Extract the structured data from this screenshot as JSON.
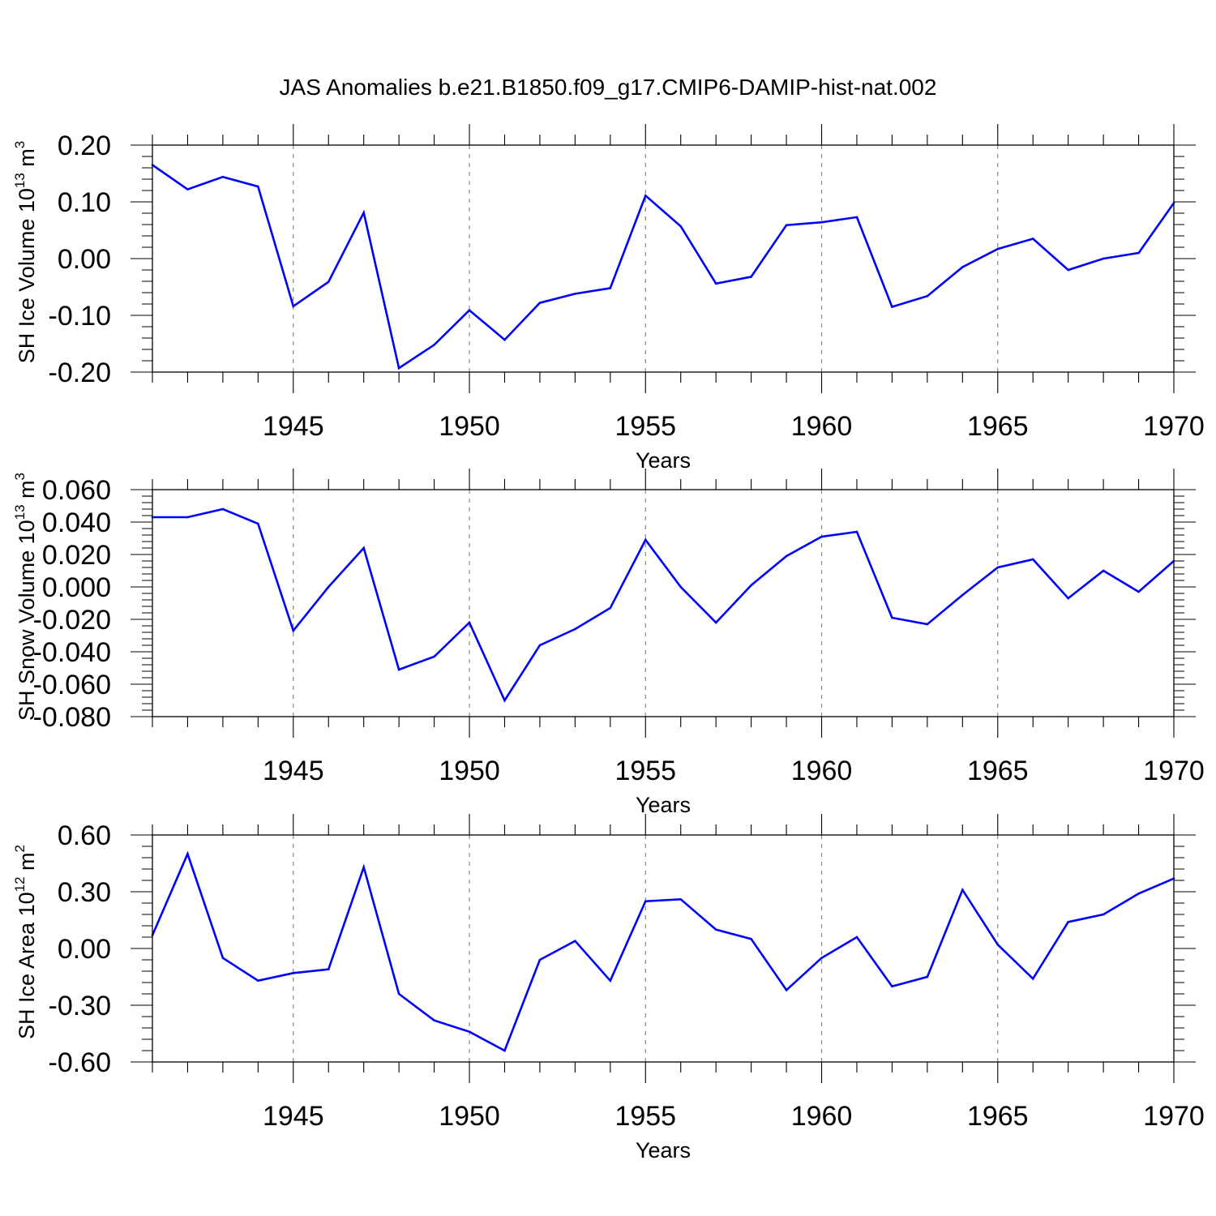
{
  "title": "JAS Anomalies b.e21.B1850.f09_g17.CMIP6-DAMIP-hist-nat.002",
  "colors": {
    "line": "#0000ff",
    "axis": "#000000",
    "grid": "#888888"
  },
  "chart_data": [
    {
      "type": "line",
      "ylabel_main": "SH Ice Volume 10",
      "ylabel_exp": "13",
      "ylabel_unit": " m",
      "ylabel_unit_exp": "3",
      "xlabel": "Years",
      "xlim": [
        1941,
        1970
      ],
      "ylim": [
        -0.2,
        0.2
      ],
      "yticks": [
        0.2,
        0.1,
        0.0,
        -0.1,
        -0.2
      ],
      "ytick_labels": [
        "0.20",
        "0.10",
        "0.00",
        "-0.10",
        "-0.20"
      ],
      "xticks": [
        1945,
        1950,
        1955,
        1960,
        1965,
        1970
      ],
      "xtick_labels": [
        "1945",
        "1950",
        "1955",
        "1960",
        "1965",
        "1970"
      ],
      "x": [
        1941,
        1942,
        1943,
        1944,
        1945,
        1946,
        1947,
        1948,
        1949,
        1950,
        1951,
        1952,
        1953,
        1954,
        1955,
        1956,
        1957,
        1958,
        1959,
        1960,
        1961,
        1962,
        1963,
        1964,
        1965,
        1966,
        1967,
        1968,
        1969,
        1970
      ],
      "values": [
        0.165,
        0.122,
        0.144,
        0.127,
        -0.084,
        -0.041,
        0.081,
        -0.193,
        -0.152,
        -0.091,
        -0.143,
        -0.078,
        -0.062,
        -0.052,
        0.111,
        0.057,
        -0.044,
        -0.032,
        0.059,
        0.064,
        0.073,
        -0.085,
        -0.066,
        -0.015,
        0.017,
        0.035,
        -0.02,
        0.0,
        0.01,
        0.098
      ]
    },
    {
      "type": "line",
      "ylabel_main": "SH Snow Volume 10",
      "ylabel_exp": "13",
      "ylabel_unit": " m",
      "ylabel_unit_exp": "3",
      "xlabel": "Years",
      "xlim": [
        1941,
        1970
      ],
      "ylim": [
        -0.08,
        0.06
      ],
      "yticks": [
        0.06,
        0.04,
        0.02,
        0.0,
        -0.02,
        -0.04,
        -0.06,
        -0.08
      ],
      "ytick_labels": [
        "0.060",
        "0.040",
        "0.020",
        "0.000",
        "-0.020",
        "-0.040",
        "-0.060",
        "-0.080"
      ],
      "xticks": [
        1945,
        1950,
        1955,
        1960,
        1965,
        1970
      ],
      "xtick_labels": [
        "1945",
        "1950",
        "1955",
        "1960",
        "1965",
        "1970"
      ],
      "x": [
        1941,
        1942,
        1943,
        1944,
        1945,
        1946,
        1947,
        1948,
        1949,
        1950,
        1951,
        1952,
        1953,
        1954,
        1955,
        1956,
        1957,
        1958,
        1959,
        1960,
        1961,
        1962,
        1963,
        1964,
        1965,
        1966,
        1967,
        1968,
        1969,
        1970
      ],
      "values": [
        0.043,
        0.043,
        0.048,
        0.039,
        -0.027,
        0.0,
        0.024,
        -0.051,
        -0.043,
        -0.022,
        -0.07,
        -0.036,
        -0.026,
        -0.013,
        0.029,
        0.0,
        -0.022,
        0.001,
        0.019,
        0.031,
        0.034,
        -0.019,
        -0.023,
        -0.005,
        0.012,
        0.017,
        -0.007,
        0.01,
        -0.003,
        0.016
      ]
    },
    {
      "type": "line",
      "ylabel_main": "SH Ice Area 10",
      "ylabel_exp": "12",
      "ylabel_unit": " m",
      "ylabel_unit_exp": "2",
      "xlabel": "Years",
      "xlim": [
        1941,
        1970
      ],
      "ylim": [
        -0.6,
        0.6
      ],
      "yticks": [
        0.6,
        0.3,
        0.0,
        -0.3,
        -0.6
      ],
      "ytick_labels": [
        "0.60",
        "0.30",
        "0.00",
        "-0.30",
        "-0.60"
      ],
      "xticks": [
        1945,
        1950,
        1955,
        1960,
        1965,
        1970
      ],
      "xtick_labels": [
        "1945",
        "1950",
        "1955",
        "1960",
        "1965",
        "1970"
      ],
      "x": [
        1941,
        1942,
        1943,
        1944,
        1945,
        1946,
        1947,
        1948,
        1949,
        1950,
        1951,
        1952,
        1953,
        1954,
        1955,
        1956,
        1957,
        1958,
        1959,
        1960,
        1961,
        1962,
        1963,
        1964,
        1965,
        1966,
        1967,
        1968,
        1969,
        1970
      ],
      "values": [
        0.07,
        0.5,
        -0.05,
        -0.17,
        -0.13,
        -0.11,
        0.43,
        -0.24,
        -0.38,
        -0.44,
        -0.54,
        -0.06,
        0.04,
        -0.17,
        0.25,
        0.26,
        0.1,
        0.05,
        -0.22,
        -0.05,
        0.06,
        -0.2,
        -0.15,
        0.31,
        0.02,
        -0.16,
        0.14,
        0.18,
        0.29,
        0.37
      ]
    }
  ]
}
